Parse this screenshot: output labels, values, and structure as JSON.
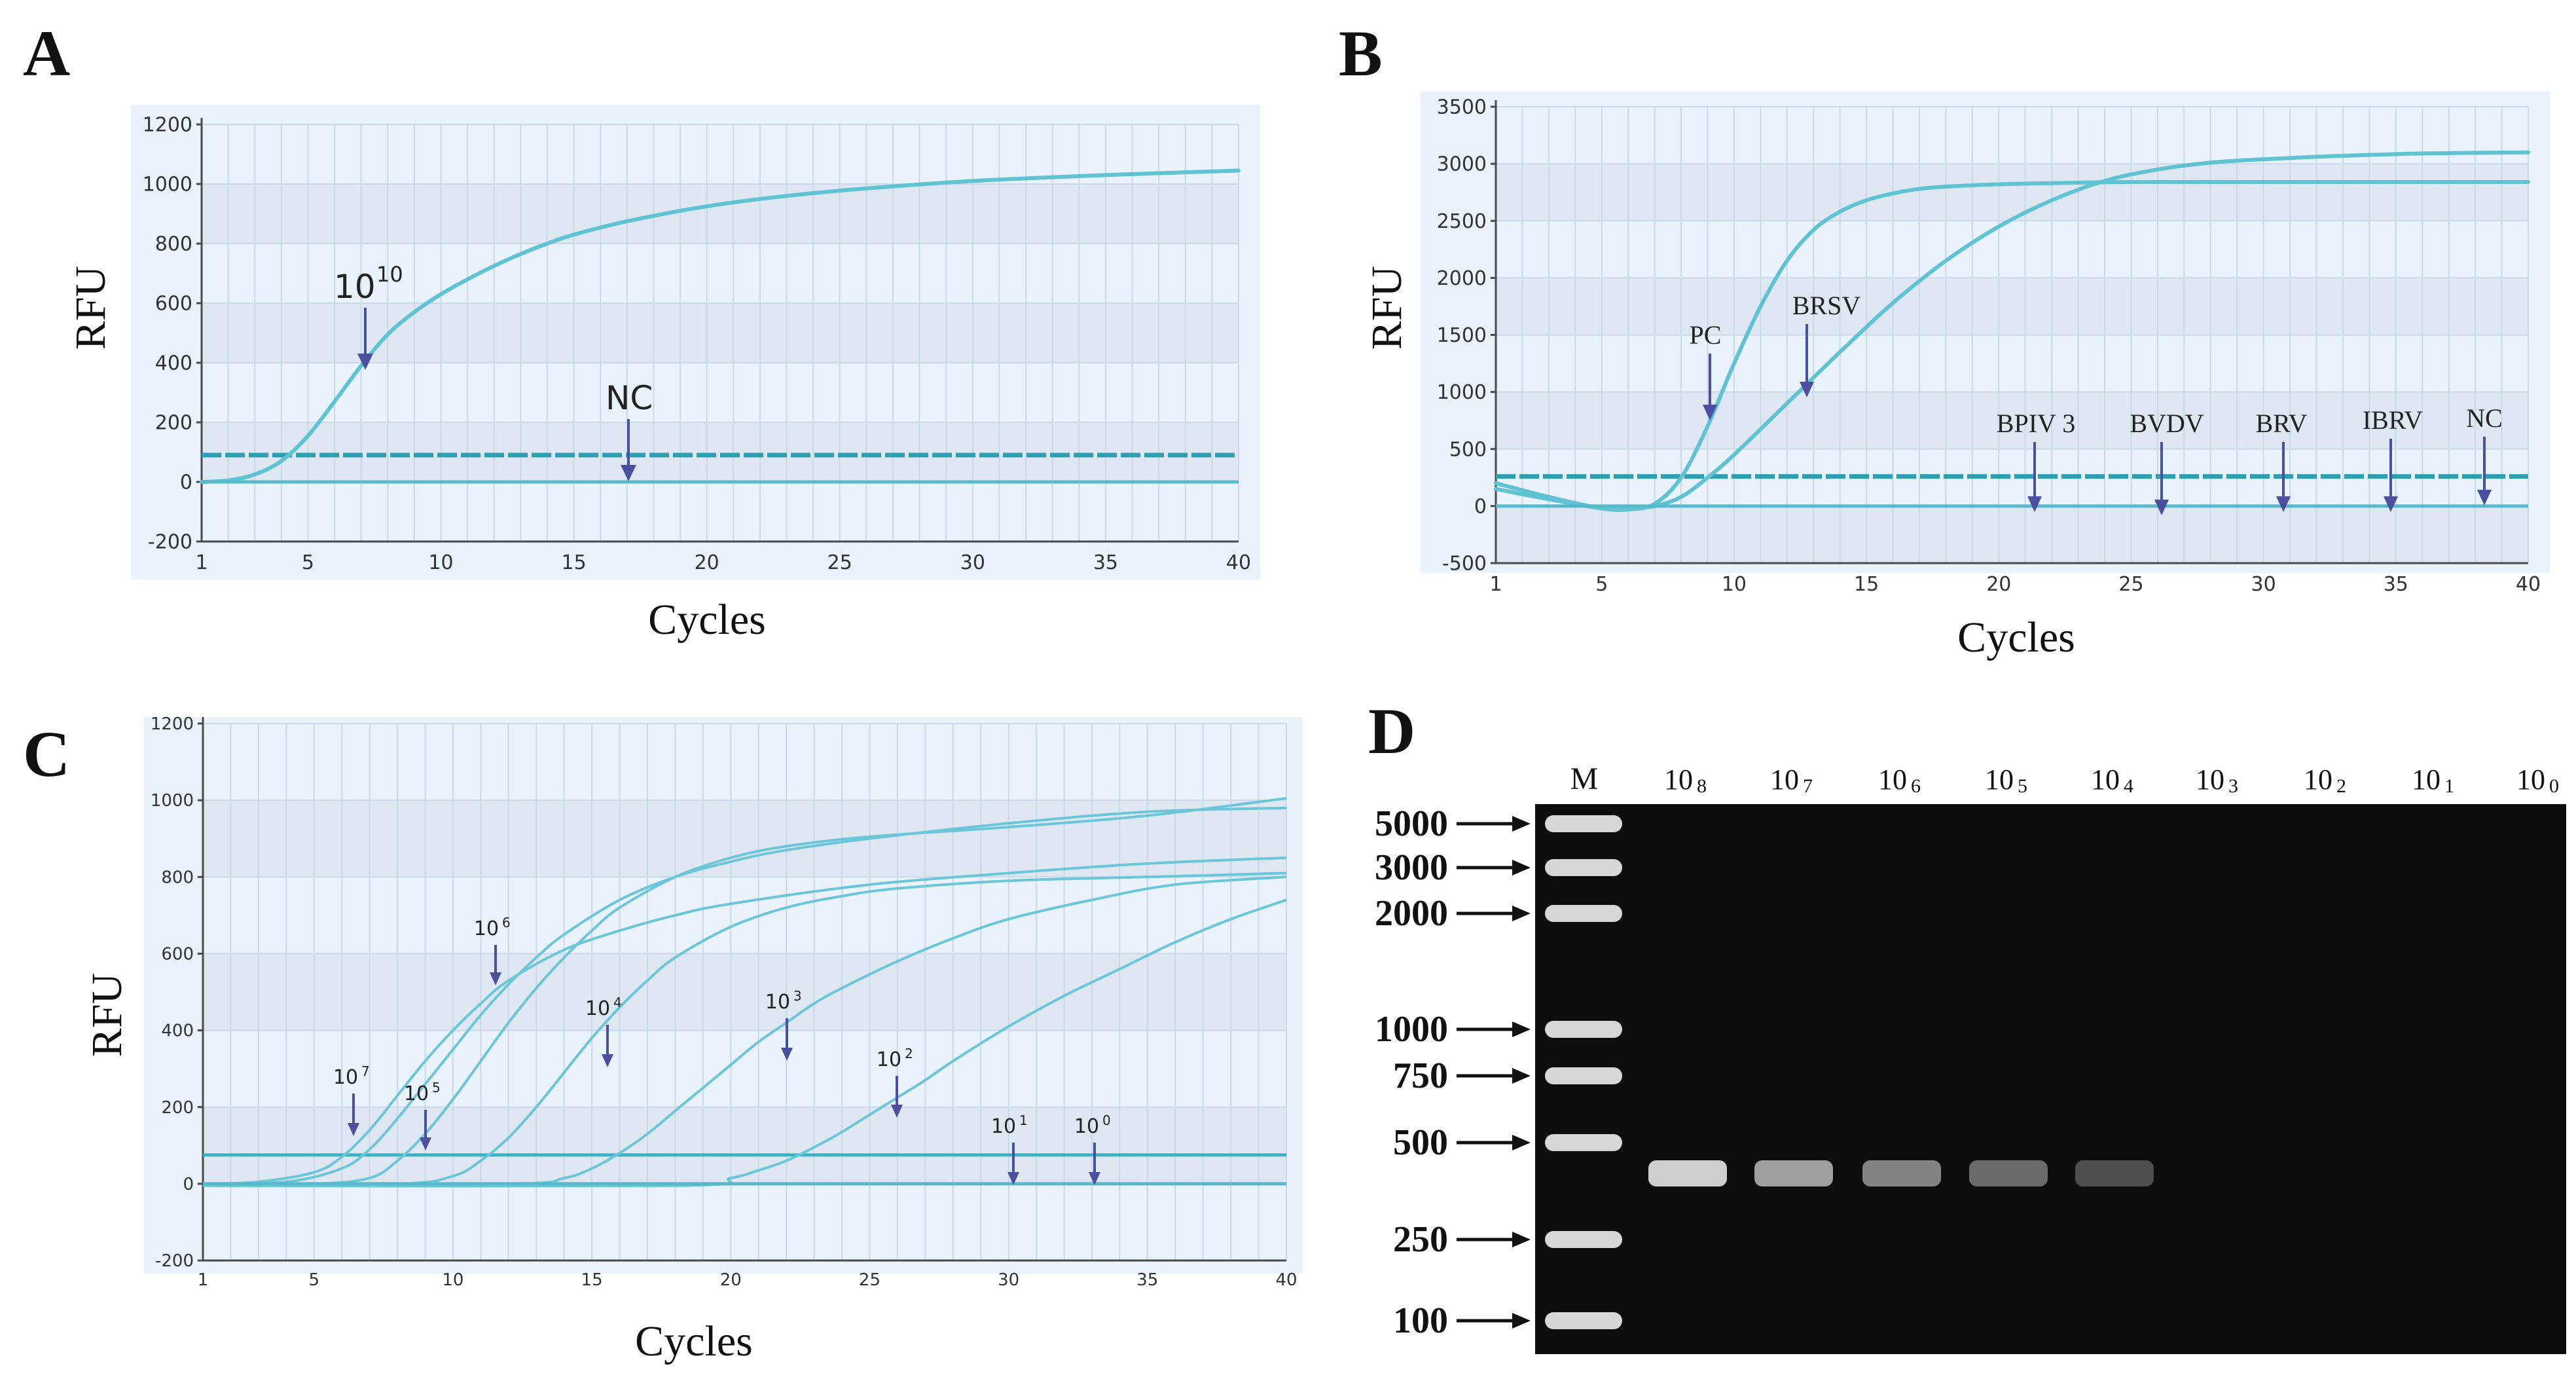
{
  "panels": {
    "A": {
      "label": "A",
      "xlabel": "Cycles",
      "ylabel": "RFU",
      "yticks": [
        "1200",
        "1000",
        "800",
        "600",
        "400",
        "200",
        "0",
        "-200"
      ],
      "xticks": [
        "1",
        "5",
        "10",
        "15",
        "20",
        "25",
        "30",
        "35",
        "40"
      ],
      "annotations": {
        "main": "10",
        "main_sup": "10",
        "nc": "NC"
      }
    },
    "B": {
      "label": "B",
      "xlabel": "Cycles",
      "ylabel": "RFU",
      "yticks": [
        "3500",
        "3000",
        "2500",
        "2000",
        "1500",
        "1000",
        "500",
        "0",
        "-500"
      ],
      "xticks": [
        "1",
        "5",
        "10",
        "15",
        "20",
        "25",
        "30",
        "35",
        "40"
      ],
      "annotations": [
        "PC",
        "BRSV",
        "BPIV 3",
        "BVDV",
        "BRV",
        "IBRV",
        "NC"
      ]
    },
    "C": {
      "label": "C",
      "xlabel": "Cycles",
      "ylabel": "RFU",
      "yticks": [
        "1200",
        "1000",
        "800",
        "600",
        "400",
        "200",
        "0",
        "-200"
      ],
      "xticks": [
        "1",
        "5",
        "10",
        "15",
        "20",
        "25",
        "30",
        "35",
        "40"
      ],
      "annotations": [
        {
          "base": "10",
          "sup": "7"
        },
        {
          "base": "10",
          "sup": "6"
        },
        {
          "base": "10",
          "sup": "5"
        },
        {
          "base": "10",
          "sup": "4"
        },
        {
          "base": "10",
          "sup": "3"
        },
        {
          "base": "10",
          "sup": "2"
        },
        {
          "base": "10",
          "sup": "1"
        },
        {
          "base": "10",
          "sup": "0"
        }
      ]
    },
    "D": {
      "label": "D",
      "ladder_header": "M",
      "ladder": [
        "5000",
        "3000",
        "2000",
        "1000",
        "750",
        "500",
        "250",
        "100"
      ],
      "lanes": [
        {
          "base": "10",
          "sup": "8"
        },
        {
          "base": "10",
          "sup": "7"
        },
        {
          "base": "10",
          "sup": "6"
        },
        {
          "base": "10",
          "sup": "5"
        },
        {
          "base": "10",
          "sup": "4"
        },
        {
          "base": "10",
          "sup": "3"
        },
        {
          "base": "10",
          "sup": "2"
        },
        {
          "base": "10",
          "sup": "1"
        },
        {
          "base": "10",
          "sup": "0"
        }
      ]
    }
  },
  "chart_data": [
    {
      "panel": "A",
      "type": "line",
      "title": "",
      "xlabel": "Cycles",
      "ylabel": "RFU",
      "xlim": [
        1,
        40
      ],
      "ylim": [
        -200,
        1200
      ],
      "threshold": 90,
      "series": [
        {
          "name": "10^10",
          "x": [
            1,
            2,
            3,
            4,
            5,
            6,
            7,
            8,
            9,
            10,
            11,
            12,
            13,
            14,
            15,
            17,
            20,
            23,
            26,
            30,
            35,
            40
          ],
          "y": [
            0,
            5,
            25,
            70,
            155,
            270,
            390,
            495,
            570,
            630,
            680,
            725,
            765,
            800,
            830,
            875,
            925,
            960,
            985,
            1010,
            1030,
            1045
          ]
        },
        {
          "name": "NC",
          "x": [
            1,
            40
          ],
          "y": [
            0,
            0
          ]
        }
      ]
    },
    {
      "panel": "B",
      "type": "line",
      "title": "",
      "xlabel": "Cycles",
      "ylabel": "RFU",
      "xlim": [
        1,
        40
      ],
      "ylim": [
        -500,
        3500
      ],
      "threshold": 260,
      "series": [
        {
          "name": "PC",
          "x": [
            1,
            3,
            5,
            6,
            7,
            8,
            9,
            10,
            11,
            12,
            13,
            14,
            15,
            16,
            17,
            18,
            20,
            22,
            25,
            30,
            40
          ],
          "y": [
            200,
            80,
            -20,
            -30,
            20,
            250,
            700,
            1250,
            1750,
            2150,
            2420,
            2580,
            2680,
            2740,
            2780,
            2800,
            2820,
            2830,
            2840,
            2840,
            2840
          ]
        },
        {
          "name": "BRSV",
          "x": [
            1,
            3,
            5,
            6,
            7,
            8,
            9,
            10,
            12,
            14,
            16,
            18,
            20,
            22,
            24,
            26,
            28,
            30,
            33,
            36,
            40
          ],
          "y": [
            150,
            60,
            -20,
            -20,
            0,
            80,
            250,
            450,
            900,
            1350,
            1780,
            2150,
            2450,
            2680,
            2850,
            2950,
            3010,
            3040,
            3070,
            3090,
            3100
          ]
        },
        {
          "name": "BPIV 3",
          "x": [
            1,
            40
          ],
          "y": [
            0,
            0
          ]
        },
        {
          "name": "BVDV",
          "x": [
            1,
            40
          ],
          "y": [
            0,
            0
          ]
        },
        {
          "name": "BRV",
          "x": [
            1,
            40
          ],
          "y": [
            0,
            0
          ]
        },
        {
          "name": "IBRV",
          "x": [
            1,
            40
          ],
          "y": [
            0,
            0
          ]
        },
        {
          "name": "NC",
          "x": [
            1,
            40
          ],
          "y": [
            0,
            0
          ]
        }
      ]
    },
    {
      "panel": "C",
      "type": "line",
      "title": "",
      "xlabel": "Cycles",
      "ylabel": "RFU",
      "xlim": [
        1,
        40
      ],
      "ylim": [
        -200,
        1200
      ],
      "threshold": 75,
      "series": [
        {
          "name": "10^7",
          "x": [
            1,
            3,
            5,
            6,
            7,
            8,
            9,
            10,
            11,
            12,
            14,
            16,
            18,
            20,
            25,
            30,
            35,
            40
          ],
          "y": [
            0,
            5,
            30,
            70,
            140,
            230,
            320,
            400,
            470,
            530,
            610,
            660,
            700,
            730,
            780,
            810,
            835,
            850
          ]
        },
        {
          "name": "10^6",
          "x": [
            1,
            4,
            6,
            7,
            8,
            9,
            10,
            11,
            12,
            13,
            14,
            16,
            18,
            20,
            22,
            25,
            30,
            35,
            40
          ],
          "y": [
            0,
            5,
            40,
            90,
            170,
            260,
            350,
            440,
            520,
            590,
            650,
            740,
            800,
            840,
            870,
            900,
            940,
            970,
            980
          ]
        },
        {
          "name": "10^5",
          "x": [
            1,
            5,
            7,
            8,
            9,
            10,
            11,
            12,
            13,
            14,
            15,
            16,
            18,
            20,
            22,
            25,
            30,
            35,
            40
          ],
          "y": [
            0,
            0,
            15,
            60,
            130,
            220,
            320,
            420,
            510,
            590,
            660,
            720,
            800,
            850,
            880,
            905,
            930,
            960,
            1005
          ]
        },
        {
          "name": "10^4",
          "x": [
            1,
            8,
            10,
            11,
            12,
            13,
            14,
            15,
            16,
            17,
            18,
            20,
            22,
            24,
            26,
            30,
            35,
            40
          ],
          "y": [
            0,
            0,
            20,
            60,
            120,
            200,
            290,
            380,
            460,
            530,
            590,
            670,
            720,
            750,
            770,
            790,
            800,
            810
          ]
        },
        {
          "name": "10^3",
          "x": [
            1,
            12,
            14,
            15,
            16,
            17,
            18,
            19,
            20,
            21,
            22,
            23,
            24,
            26,
            28,
            30,
            33,
            36,
            40
          ],
          "y": [
            0,
            0,
            15,
            40,
            80,
            130,
            190,
            250,
            310,
            370,
            420,
            470,
            510,
            580,
            640,
            690,
            740,
            780,
            800
          ]
        },
        {
          "name": "10^2",
          "x": [
            1,
            18,
            20,
            21,
            22,
            23,
            24,
            25,
            26,
            27,
            28,
            30,
            32,
            34,
            36,
            38,
            40
          ],
          "y": [
            -5,
            -5,
            15,
            35,
            60,
            95,
            135,
            180,
            225,
            270,
            320,
            410,
            490,
            560,
            630,
            690,
            740
          ]
        },
        {
          "name": "10^1",
          "x": [
            1,
            40
          ],
          "y": [
            0,
            0
          ]
        },
        {
          "name": "10^0",
          "x": [
            1,
            40
          ],
          "y": [
            0,
            0
          ]
        }
      ]
    }
  ]
}
